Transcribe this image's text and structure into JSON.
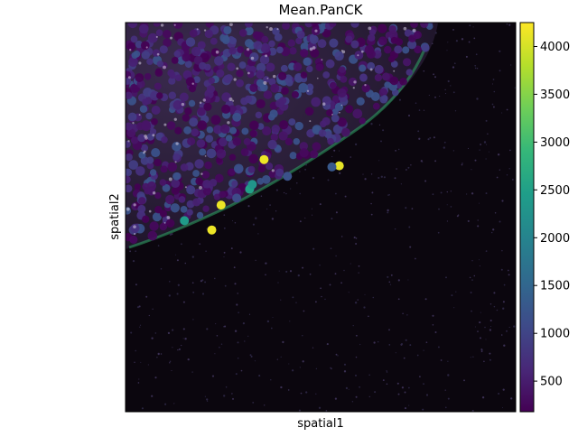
{
  "chart_data": {
    "type": "scatter",
    "title": "Mean.PanCK",
    "xlabel": "spatial1",
    "ylabel": "spatial2",
    "axes_ticks": false,
    "background": "dark tissue fluorescence image",
    "colormap": "viridis",
    "colorbar": {
      "range": [
        180,
        4250
      ],
      "ticks": [
        500,
        1000,
        1500,
        2000,
        2500,
        3000,
        3500,
        4000
      ],
      "tick_labels": [
        "500",
        "1000",
        "1500",
        "2000",
        "2500",
        "3000",
        "3500",
        "4000"
      ]
    },
    "highlighted_points": [
      {
        "x": 0.355,
        "y": 0.352,
        "value": 4150
      },
      {
        "x": 0.548,
        "y": 0.368,
        "value": 4100
      },
      {
        "x": 0.245,
        "y": 0.469,
        "value": 4150
      },
      {
        "x": 0.221,
        "y": 0.533,
        "value": 4150
      },
      {
        "x": 0.151,
        "y": 0.509,
        "value": 2400
      },
      {
        "x": 0.318,
        "y": 0.428,
        "value": 2500
      },
      {
        "x": 0.325,
        "y": 0.416,
        "value": 2300
      },
      {
        "x": 0.529,
        "y": 0.371,
        "value": 1300
      },
      {
        "x": 0.415,
        "y": 0.395,
        "value": 1200
      },
      {
        "x": 0.285,
        "y": 0.451,
        "value": 1100
      }
    ],
    "colors": {
      "viridis": [
        "#440154",
        "#482878",
        "#3e4a89",
        "#31688e",
        "#26828e",
        "#1f9e89",
        "#35b779",
        "#6ece58",
        "#b5de2b",
        "#fde725"
      ],
      "background": "#0b060e",
      "tissue": "#1a1020"
    }
  }
}
